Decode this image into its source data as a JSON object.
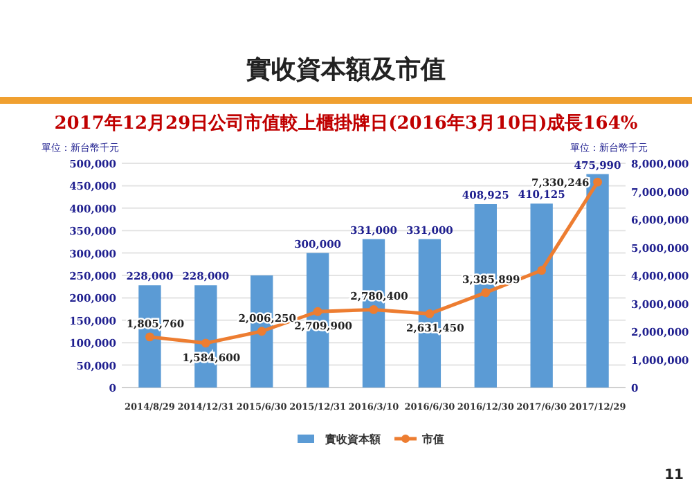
{
  "chart_data": {
    "type": "bar",
    "title": "實收資本額及市值",
    "subtitle": "2017年12月29日公司市值較上櫃掛牌日(2016年3月10日)成長164%",
    "ylabel": "單位：新台幣千元",
    "y2label": "單位：新台幣千元",
    "categories": [
      "2014/8/29",
      "2014/12/31",
      "2015/6/30",
      "2015/12/31",
      "2016/3/10",
      "2016/6/30",
      "2016/12/30",
      "2017/6/30",
      "2017/12/29"
    ],
    "series": [
      {
        "name": "實收資本額",
        "color": "#5b9bd5",
        "values": [
          228000,
          228000,
          250000,
          300000,
          331000,
          331000,
          408925,
          410125,
          475990
        ],
        "value_labels": [
          "228,000",
          "228,000",
          null,
          "300,000",
          "331,000",
          "331,000",
          "408,925",
          "410,125",
          "475,990"
        ]
      },
      {
        "name": "市值",
        "type": "line",
        "axis": "y2",
        "color": "#ed7d31",
        "marker": "circle",
        "values": [
          1805760,
          1584600,
          2006250,
          2709900,
          2780400,
          2631450,
          3385899,
          4180000,
          7330246
        ],
        "value_labels": [
          "1,805,760",
          "1,584,600",
          "2,006,250",
          "2,709,900",
          "2,780,400",
          "2,631,450",
          "3,385,899",
          null,
          "7,330,246"
        ]
      }
    ],
    "ylim": [
      0,
      500000
    ],
    "yticks": [
      0,
      {
        "value": 50000,
        "label": "50,000"
      },
      {
        "value": 100000,
        "label": "100,000"
      },
      {
        "value": 150000,
        "label": "150,000"
      },
      {
        "value": 200000,
        "label": "200,000"
      },
      {
        "value": 250000,
        "label": "250,000"
      },
      {
        "value": 300000,
        "label": "300,000"
      },
      {
        "value": 350000,
        "label": "350,000"
      },
      {
        "value": 400000,
        "label": "400,000"
      },
      {
        "value": 450000,
        "label": "450,000"
      },
      {
        "value": 500000,
        "label": "500,000"
      }
    ],
    "y2lim": [
      0,
      8000000
    ],
    "y2ticks": [
      0,
      {
        "value": 1000000,
        "label": "1,000,000"
      },
      {
        "value": 2000000,
        "label": "2,000,000"
      },
      {
        "value": 3000000,
        "label": "3,000,000"
      },
      {
        "value": 4000000,
        "label": "4,000,000"
      },
      {
        "value": 5000000,
        "label": "5,000,000"
      },
      {
        "value": 6000000,
        "label": "6,000,000"
      },
      {
        "value": 7000000,
        "label": "7,000,000"
      },
      {
        "value": 8000000,
        "label": "8,000,000"
      }
    ],
    "grid": "y",
    "legend": "bottom",
    "annotations": [
      "11"
    ]
  }
}
